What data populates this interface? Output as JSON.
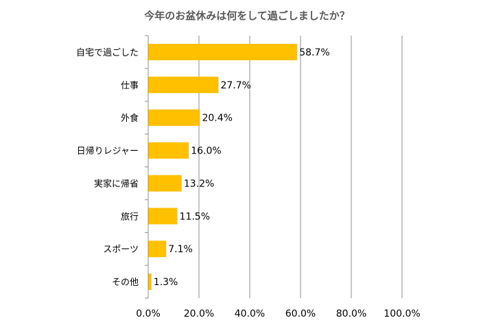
{
  "chart_data": {
    "type": "bar",
    "orientation": "horizontal",
    "title": "今年のお盆休みは何をして過ごしましたか？",
    "categories": [
      "自宅で過ごした",
      "仕事",
      "外食",
      "日帰りレジャー",
      "実家に帰省",
      "旅行",
      "スポーツ",
      "その他"
    ],
    "values": [
      58.7,
      27.7,
      20.4,
      16.0,
      13.2,
      11.5,
      7.1,
      1.3
    ],
    "value_labels": [
      "58.7%",
      "27.7%",
      "20.4%",
      "16.0%",
      "13.2%",
      "11.5%",
      "7.1%",
      "1.3%"
    ],
    "xlim": [
      0,
      100
    ],
    "xticks": [
      0,
      20,
      40,
      60,
      80,
      100
    ],
    "xtick_labels": [
      "0.0%",
      "20.0%",
      "40.0%",
      "60.0%",
      "80.0%",
      "100.0%"
    ],
    "xlabel": "",
    "ylabel": "",
    "grid": true,
    "legend": "none",
    "colors": {
      "bar": "#FFC000",
      "grid": "#8C8C8C",
      "axis": "#8C8C8C"
    }
  }
}
